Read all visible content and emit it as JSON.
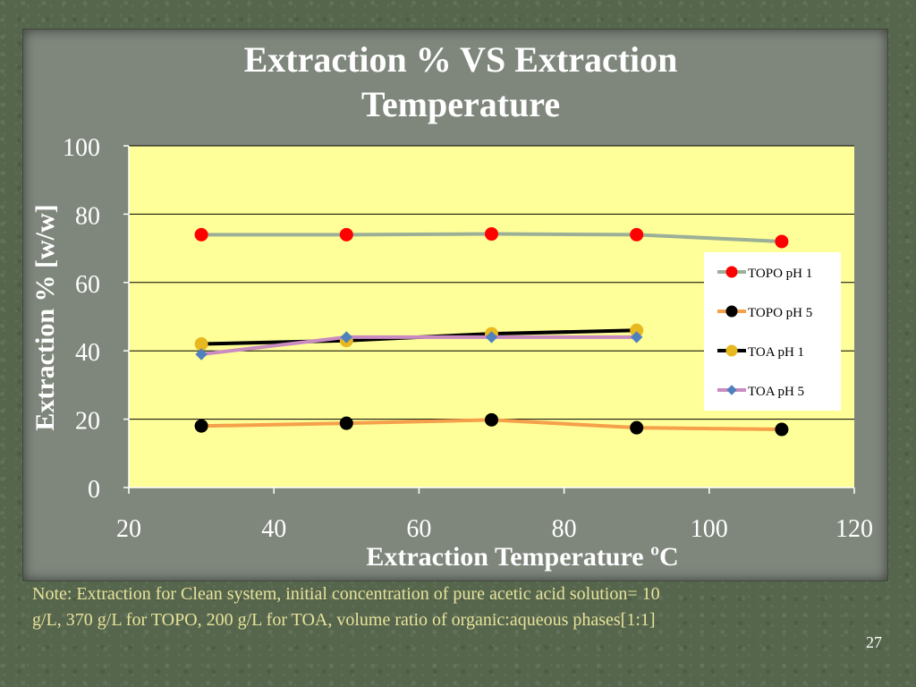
{
  "slide": {
    "title_line1": "Extraction % VS Extraction",
    "title_line2": "Temperature",
    "note_line1": "Note: Extraction for Clean system, initial concentration of pure acetic acid solution= 10",
    "note_line2": "g/L, 370 g/L for TOPO, 200 g/L for TOA, volume ratio of organic:aqueous phases[1:1]",
    "page_number": "27"
  },
  "chart_data": {
    "type": "scatter",
    "title": "",
    "xlabel": "Extraction Temperature ºC",
    "ylabel": "Extraction % [w/w]",
    "xlim": [
      20,
      120
    ],
    "ylim": [
      0,
      100
    ],
    "xticks": [
      20,
      40,
      60,
      80,
      100,
      120
    ],
    "yticks": [
      0,
      20,
      40,
      60,
      80,
      100
    ],
    "grid": "horizontal",
    "legend_position": "right",
    "plot_background": "#ffff99",
    "series": [
      {
        "name": "TOPO pH 1",
        "line_color": "#9bb096",
        "marker_color": "#ff0000",
        "marker": "circle",
        "points": [
          [
            30,
            74
          ],
          [
            50,
            74
          ],
          [
            70,
            74.2
          ],
          [
            90,
            74
          ],
          [
            110,
            72
          ]
        ]
      },
      {
        "name": "TOPO pH 5",
        "line_color": "#f5a04a",
        "marker_color": "#000000",
        "marker": "circle",
        "points": [
          [
            30,
            18
          ],
          [
            50,
            18.8
          ],
          [
            70,
            19.8
          ],
          [
            90,
            17.5
          ],
          [
            110,
            17
          ]
        ]
      },
      {
        "name": "TOA pH 1",
        "line_color": "#000000",
        "marker_color": "#e8b820",
        "marker": "circle",
        "points": [
          [
            30,
            42
          ],
          [
            50,
            43
          ],
          [
            70,
            45
          ],
          [
            90,
            46
          ]
        ]
      },
      {
        "name": "TOA pH 5",
        "line_color": "#c98bc0",
        "marker_color": "#4f81bd",
        "marker": "diamond",
        "points": [
          [
            30,
            39
          ],
          [
            50,
            44
          ],
          [
            70,
            44
          ],
          [
            90,
            44
          ]
        ]
      }
    ]
  }
}
